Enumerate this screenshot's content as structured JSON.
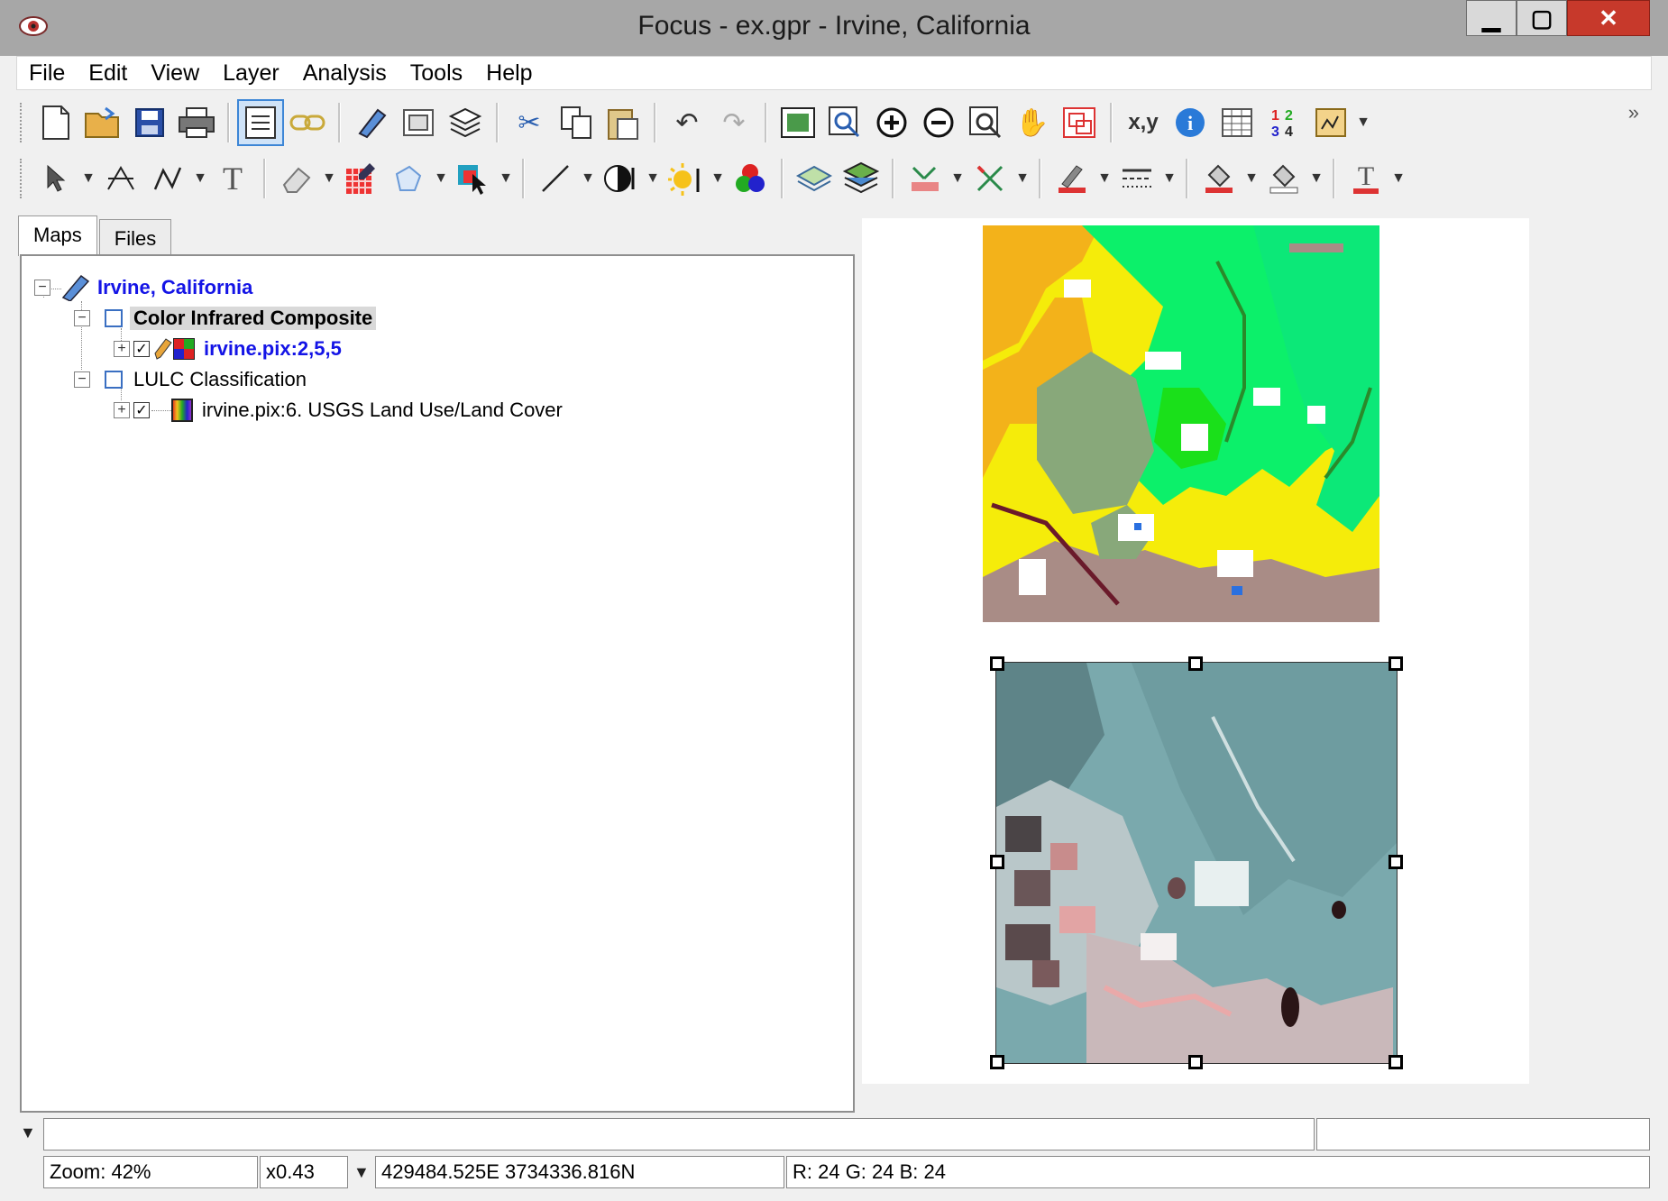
{
  "window": {
    "title": "Focus - ex.gpr - Irvine, California"
  },
  "menu": [
    "File",
    "Edit",
    "View",
    "Layer",
    "Analysis",
    "Tools",
    "Help"
  ],
  "tabs": {
    "maps": "Maps",
    "files": "Files"
  },
  "tree": {
    "project": "Irvine, California",
    "area1": "Color Infrared Composite",
    "layer1": "irvine.pix:2,5,5",
    "area2": "LULC Classification",
    "layer2": "irvine.pix:6. USGS Land Use/Land Cover"
  },
  "status": {
    "zoom": "Zoom: 42%",
    "scale": "x0.43",
    "coords": "429484.525E 3734336.816N",
    "rgb": "R: 24 G: 24 B: 24"
  },
  "toolbar_glyphs": {
    "coords_text": "x,y",
    "numbers_text": "1 2 3 4",
    "text_tool": "T"
  }
}
